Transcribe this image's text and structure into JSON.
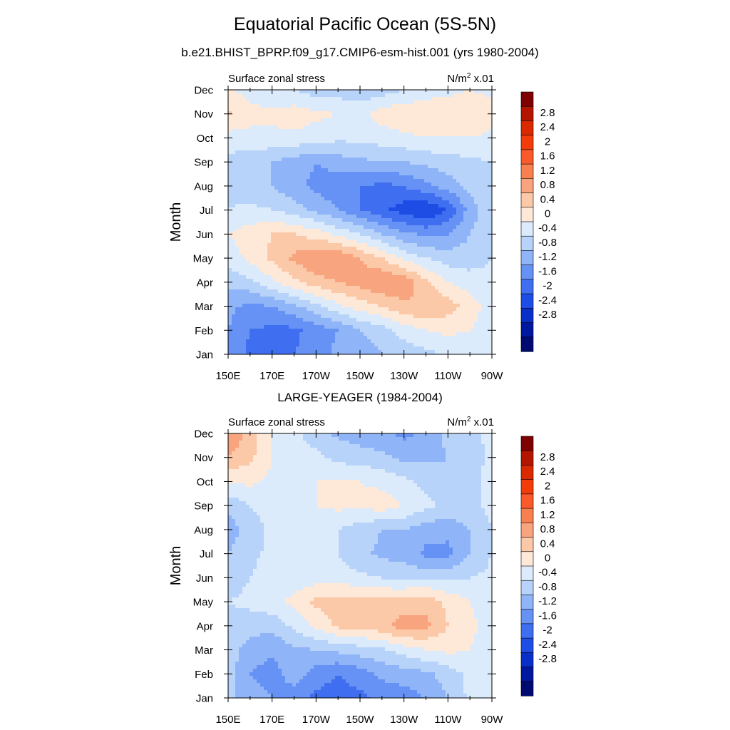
{
  "page": {
    "title": "Equatorial Pacific Ocean (5S-5N)",
    "subtitle": "b.e21.BHIST_BPRP.f09_g17.CMIP6-esm-hist.001 (yrs 1980-2004)"
  },
  "colorbar": {
    "labels": [
      "2.8",
      "2.4",
      "2",
      "1.6",
      "1.2",
      "0.8",
      "0.4",
      "0",
      "-0.4",
      "-0.8",
      "-1.2",
      "-1.6",
      "-2",
      "-2.4",
      "-2.8"
    ],
    "colors": [
      "#7f0000",
      "#b31500",
      "#da2800",
      "#f23c0a",
      "#fa5a2a",
      "#f88050",
      "#f8a47e",
      "#fbc8a8",
      "#fee8d8",
      "#dcebfb",
      "#b8d3f9",
      "#8fb4f7",
      "#6592f4",
      "#3f6ff0",
      "#1e4de6",
      "#0a2fc8",
      "#0018a0",
      "#000a70"
    ]
  },
  "chart_data": [
    {
      "type": "heatmap",
      "title": "",
      "left_label": "Surface zonal stress",
      "right_label_base": "N/m",
      "right_label_sup": "2",
      "right_label_tail": " x.01",
      "ylabel": "Month",
      "xlabel": "",
      "x_ticks": [
        "150E",
        "170E",
        "170W",
        "150W",
        "130W",
        "110W",
        "90W"
      ],
      "x_range": [
        150,
        270
      ],
      "y_ticks": [
        "Jan",
        "Feb",
        "Mar",
        "Apr",
        "May",
        "Jun",
        "Jul",
        "Aug",
        "Sep",
        "Oct",
        "Nov",
        "Dec"
      ],
      "levels": [
        -2.8,
        -2.4,
        -2,
        -1.6,
        -1.2,
        -0.8,
        -0.4,
        0,
        0.4,
        0.8,
        1.2,
        1.6,
        2,
        2.4,
        2.8
      ],
      "x": [
        150,
        160,
        170,
        180,
        190,
        200,
        210,
        220,
        230,
        240,
        250,
        260,
        270
      ],
      "z": [
        [
          -0.9,
          -1.3,
          -1.5,
          -1.2,
          -1.0,
          -0.7,
          -0.6,
          -0.4,
          -0.3,
          -0.1,
          0.0,
          0.2,
          0.2
        ],
        [
          -0.8,
          -1.2,
          -1.3,
          -1.3,
          -1.0,
          -0.8,
          -0.4,
          -0.2,
          0.2,
          0.4,
          0.5,
          0.4,
          0.2
        ],
        [
          -0.7,
          -0.9,
          -0.8,
          -0.5,
          -0.1,
          0.3,
          0.6,
          0.8,
          1.1,
          1.2,
          1.0,
          0.6,
          0.2
        ],
        [
          -0.3,
          -0.1,
          0.3,
          0.7,
          1.0,
          1.2,
          1.4,
          1.6,
          1.5,
          0.9,
          0.4,
          0.2,
          0.1
        ],
        [
          0.2,
          0.5,
          0.9,
          1.3,
          1.6,
          1.6,
          1.2,
          0.8,
          0.3,
          0.0,
          -0.2,
          -0.2,
          0.0
        ],
        [
          0.4,
          0.6,
          0.8,
          0.8,
          0.6,
          0.3,
          0.0,
          -0.4,
          -0.7,
          -0.9,
          -0.8,
          -0.4,
          -0.1
        ],
        [
          0.0,
          0.1,
          0.0,
          -0.2,
          -0.5,
          -0.8,
          -1.2,
          -1.5,
          -1.8,
          -2.0,
          -1.6,
          -0.6,
          -0.1
        ],
        [
          -0.1,
          -0.3,
          -0.4,
          -0.7,
          -0.9,
          -1.1,
          -1.2,
          -1.3,
          -1.2,
          -0.9,
          -0.6,
          -0.3,
          -0.1
        ],
        [
          -0.1,
          -0.3,
          -0.4,
          -0.6,
          -0.8,
          -0.6,
          -0.5,
          -0.4,
          -0.4,
          -0.3,
          -0.2,
          -0.1,
          0.0
        ],
        [
          0.2,
          0.3,
          0.3,
          0.3,
          0.2,
          0.1,
          0.1,
          0.2,
          0.3,
          0.4,
          0.4,
          0.4,
          0.3
        ],
        [
          0.9,
          0.5,
          0.5,
          0.6,
          0.5,
          0.4,
          0.3,
          0.6,
          0.7,
          0.7,
          0.7,
          0.7,
          0.6
        ],
        [
          0.4,
          0.3,
          0.1,
          0.0,
          -0.2,
          -0.2,
          -0.3,
          -0.2,
          0.0,
          0.2,
          0.3,
          0.4,
          0.3
        ]
      ]
    },
    {
      "type": "heatmap",
      "title": "LARGE-YEAGER (1984-2004)",
      "left_label": "Surface zonal stress",
      "right_label_base": "N/m",
      "right_label_sup": "2",
      "right_label_tail": " x.01",
      "ylabel": "Month",
      "xlabel": "",
      "x_ticks": [
        "150E",
        "170E",
        "170W",
        "150W",
        "130W",
        "110W",
        "90W"
      ],
      "x_range": [
        150,
        270
      ],
      "y_ticks": [
        "Jan",
        "Feb",
        "Mar",
        "Apr",
        "May",
        "Jun",
        "Jul",
        "Aug",
        "Sep",
        "Oct",
        "Nov",
        "Dec"
      ],
      "levels": [
        -2.8,
        -2.4,
        -2,
        -1.6,
        -1.2,
        -0.8,
        -0.4,
        0,
        0.4,
        0.8,
        1.2,
        1.6,
        2,
        2.4,
        2.8
      ],
      "x": [
        150,
        160,
        170,
        180,
        190,
        200,
        210,
        220,
        230,
        240,
        250,
        260,
        270
      ],
      "z": [
        [
          -0.3,
          -0.6,
          -0.8,
          -1.0,
          -1.3,
          -1.4,
          -1.3,
          -1.1,
          -1.0,
          -0.8,
          -0.4,
          0.1,
          0.2
        ],
        [
          -0.2,
          -0.8,
          -1.0,
          -0.6,
          -1.0,
          -1.2,
          -1.0,
          -0.7,
          -0.6,
          -0.5,
          -0.2,
          0.1,
          0.2
        ],
        [
          -0.2,
          -0.6,
          -0.7,
          -0.5,
          -0.4,
          -0.3,
          -0.2,
          -0.1,
          0.2,
          0.4,
          0.5,
          0.4,
          0.2
        ],
        [
          -0.1,
          -0.2,
          -0.3,
          0.1,
          0.5,
          0.9,
          1.0,
          1.1,
          1.4,
          1.3,
          0.8,
          0.5,
          0.2
        ],
        [
          0.0,
          0.1,
          0.3,
          0.5,
          0.9,
          1.0,
          1.0,
          0.9,
          1.0,
          1.1,
          0.7,
          0.4,
          0.2
        ],
        [
          -0.2,
          0.0,
          0.2,
          0.2,
          0.2,
          0.2,
          0.1,
          0.0,
          -0.1,
          -0.1,
          -0.1,
          0.0,
          0.1
        ],
        [
          -0.4,
          -0.1,
          0.1,
          0.1,
          0.1,
          0.0,
          -0.3,
          -0.5,
          -0.6,
          -0.9,
          -0.9,
          -0.4,
          0.0
        ],
        [
          -0.6,
          -0.2,
          0.1,
          0.1,
          0.1,
          0.0,
          -0.2,
          -0.4,
          -0.4,
          -0.6,
          -0.7,
          -0.4,
          0.0
        ],
        [
          -0.3,
          0.0,
          0.2,
          0.2,
          0.4,
          0.5,
          0.5,
          0.6,
          0.4,
          0.1,
          -0.1,
          -0.1,
          0.1
        ],
        [
          0.4,
          0.5,
          0.3,
          0.2,
          0.4,
          0.4,
          0.4,
          0.3,
          0.1,
          -0.1,
          -0.3,
          -0.2,
          0.2
        ],
        [
          1.2,
          0.9,
          0.4,
          0.2,
          0.1,
          -0.1,
          -0.2,
          -0.3,
          -0.5,
          -0.5,
          -0.4,
          -0.2,
          0.1
        ],
        [
          1.5,
          1.1,
          0.3,
          0.1,
          -0.2,
          -0.5,
          -0.6,
          -0.7,
          -0.9,
          -0.7,
          -0.3,
          -0.1,
          0.1
        ]
      ]
    }
  ]
}
